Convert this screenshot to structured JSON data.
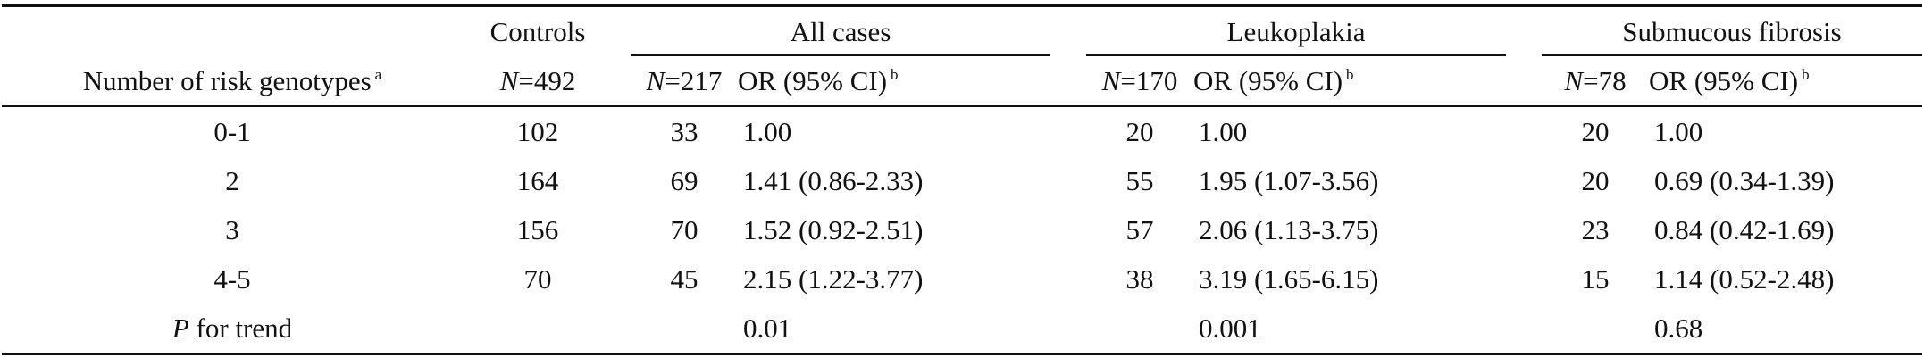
{
  "table": {
    "groups": {
      "controls": "Controls",
      "all_cases": "All cases",
      "leukoplakia": "Leukoplakia",
      "submucous": "Submucous fibrosis"
    },
    "subheaders": {
      "row_label": "Number of risk genotypes",
      "row_label_sup": "a",
      "n_prefix": "N",
      "controls_n": "=492",
      "all_n": "=217",
      "leuko_n": "=170",
      "sub_n": "=78",
      "or_label": "OR (95% CI)",
      "or_sup": "b"
    },
    "rows": [
      {
        "label": "0-1",
        "controls": "102",
        "all_n": "33",
        "all_or": "1.00",
        "leuko_n": "20",
        "leuko_or": "1.00",
        "sub_n": "20",
        "sub_or": "1.00"
      },
      {
        "label": "2",
        "controls": "164",
        "all_n": "69",
        "all_or": "1.41 (0.86-2.33)",
        "leuko_n": "55",
        "leuko_or": "1.95 (1.07-3.56)",
        "sub_n": "20",
        "sub_or": "0.69 (0.34-1.39)"
      },
      {
        "label": "3",
        "controls": "156",
        "all_n": "70",
        "all_or": "1.52 (0.92-2.51)",
        "leuko_n": "57",
        "leuko_or": "2.06 (1.13-3.75)",
        "sub_n": "23",
        "sub_or": "0.84 (0.42-1.69)"
      },
      {
        "label": "4-5",
        "controls": "70",
        "all_n": "45",
        "all_or": "2.15 (1.22-3.77)",
        "leuko_n": "38",
        "leuko_or": "3.19 (1.65-6.15)",
        "sub_n": "15",
        "sub_or": "1.14 (0.52-2.48)"
      }
    ],
    "trend": {
      "label_italic": "P",
      "label_rest": " for trend",
      "all": "0.01",
      "leuko": "0.001",
      "sub": "0.68"
    }
  }
}
